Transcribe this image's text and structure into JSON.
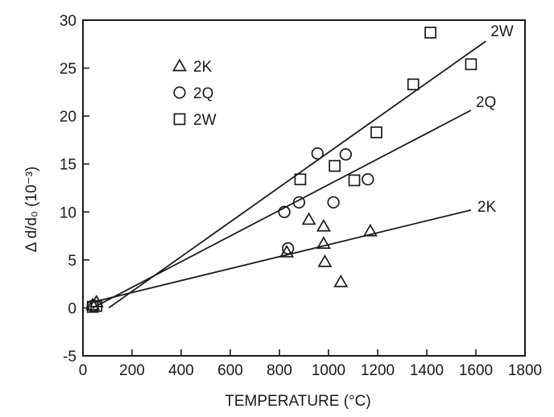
{
  "chart_data": {
    "type": "scatter",
    "title": "",
    "xlabel": "TEMPERATURE (°C)",
    "ylabel": "Δ d/d₀ (10⁻³)",
    "xlim": [
      0,
      1800
    ],
    "ylim": [
      -5,
      30
    ],
    "x_ticks": [
      0,
      200,
      400,
      600,
      800,
      1000,
      1200,
      1400,
      1600,
      1800
    ],
    "y_ticks": [
      -5,
      0,
      5,
      10,
      15,
      20,
      25,
      30
    ],
    "x_tick_labels": [
      "0",
      "200",
      "400",
      "600",
      "800",
      "1000",
      "1200",
      "1400",
      "1600",
      "1800"
    ],
    "y_tick_labels": [
      "-5",
      "0",
      "5",
      "10",
      "15",
      "20",
      "25",
      "30"
    ],
    "grid": false,
    "legend_position": "top-left",
    "series": [
      {
        "name": "2K",
        "marker": "triangle",
        "points": [
          [
            40,
            0.3
          ],
          [
            55,
            0.6
          ],
          [
            830,
            5.8
          ],
          [
            920,
            9.2
          ],
          [
            980,
            8.5
          ],
          [
            980,
            6.7
          ],
          [
            985,
            4.8
          ],
          [
            1050,
            2.7
          ],
          [
            1170,
            8.0
          ]
        ],
        "fit": {
          "x": [
            40,
            1580
          ],
          "y": [
            0.6,
            10.2
          ],
          "label": "2K"
        }
      },
      {
        "name": "2Q",
        "marker": "circle",
        "points": [
          [
            40,
            0.2
          ],
          [
            820,
            10.0
          ],
          [
            835,
            6.2
          ],
          [
            880,
            11.0
          ],
          [
            955,
            16.1
          ],
          [
            1020,
            11.0
          ],
          [
            1070,
            16.0
          ],
          [
            1160,
            13.4
          ]
        ],
        "fit": {
          "x": [
            40,
            1580
          ],
          "y": [
            0.0,
            20.6
          ],
          "label": "2Q"
        }
      },
      {
        "name": "2W",
        "marker": "square",
        "points": [
          [
            40,
            0.1
          ],
          [
            55,
            0.2
          ],
          [
            885,
            13.4
          ],
          [
            1025,
            14.8
          ],
          [
            1105,
            13.3
          ],
          [
            1195,
            18.3
          ],
          [
            1345,
            23.3
          ],
          [
            1415,
            28.7
          ],
          [
            1580,
            25.4
          ]
        ],
        "fit": {
          "x": [
            105,
            1640
          ],
          "y": [
            0.0,
            27.8
          ],
          "label": "2W"
        }
      }
    ]
  }
}
